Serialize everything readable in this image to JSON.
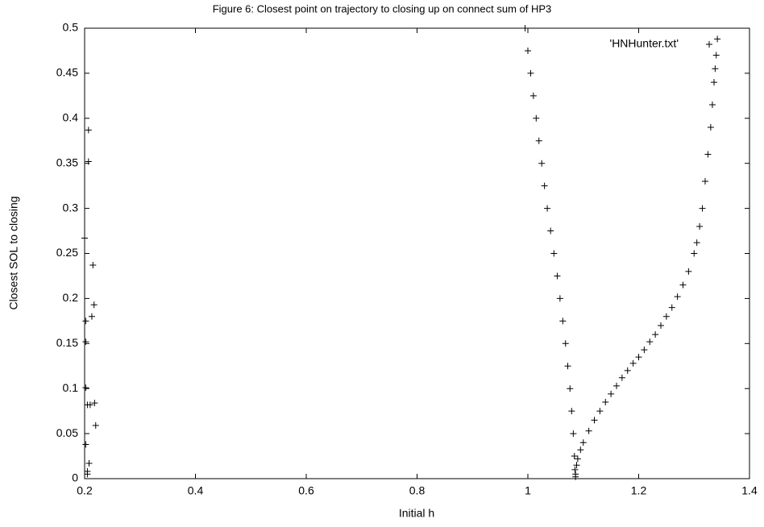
{
  "chart_data": {
    "type": "scatter",
    "title": "Figure 6: Closest point on trajectory to closing up on connect sum of HP3",
    "x_label": "Initial h",
    "y_label": "Closest SOL to closing",
    "xlim": [
      0.2,
      1.4
    ],
    "xticks": [
      0.2,
      0.4,
      0.6,
      0.8,
      1,
      1.2,
      1.4
    ],
    "ylim": [
      0,
      0.5
    ],
    "yticks": [
      0,
      0.05,
      0.1,
      0.15,
      0.2,
      0.25,
      0.3,
      0.35,
      0.4,
      0.45,
      0.5
    ],
    "grid": false,
    "legend": "top-right",
    "series": [
      {
        "name": "'HNHunter.txt'",
        "color": "#000000",
        "x": [
          0.2,
          0.202,
          0.202,
          0.202,
          0.202,
          0.205,
          0.207,
          0.207,
          0.205,
          0.21,
          0.213,
          0.215,
          0.217,
          0.218,
          0.22,
          0.208,
          0.205,
          0.995,
          1.0,
          1.005,
          1.01,
          1.015,
          1.02,
          1.025,
          1.03,
          1.035,
          1.041,
          1.047,
          1.053,
          1.058,
          1.063,
          1.068,
          1.072,
          1.076,
          1.079,
          1.082,
          1.084,
          1.085,
          1.086,
          1.086,
          1.088,
          1.09,
          1.095,
          1.1,
          1.11,
          1.12,
          1.13,
          1.14,
          1.15,
          1.16,
          1.17,
          1.18,
          1.19,
          1.2,
          1.21,
          1.22,
          1.23,
          1.24,
          1.25,
          1.26,
          1.27,
          1.28,
          1.29,
          1.3,
          1.305,
          1.31,
          1.315,
          1.32,
          1.325,
          1.33,
          1.333,
          1.336,
          1.338,
          1.34,
          1.342
        ],
        "values": [
          0.267,
          0.175,
          0.152,
          0.101,
          0.038,
          0.005,
          0.387,
          0.352,
          0.082,
          0.082,
          0.18,
          0.237,
          0.193,
          0.084,
          0.059,
          0.017,
          0.008,
          0.5,
          0.475,
          0.45,
          0.425,
          0.4,
          0.375,
          0.35,
          0.325,
          0.3,
          0.275,
          0.25,
          0.225,
          0.2,
          0.175,
          0.15,
          0.125,
          0.1,
          0.075,
          0.05,
          0.025,
          0.01,
          0.002,
          0.005,
          0.015,
          0.022,
          0.032,
          0.04,
          0.053,
          0.065,
          0.075,
          0.085,
          0.094,
          0.103,
          0.112,
          0.12,
          0.128,
          0.135,
          0.143,
          0.152,
          0.16,
          0.17,
          0.18,
          0.19,
          0.202,
          0.215,
          0.23,
          0.25,
          0.262,
          0.28,
          0.3,
          0.33,
          0.36,
          0.39,
          0.415,
          0.44,
          0.455,
          0.47,
          0.488
        ]
      }
    ]
  }
}
